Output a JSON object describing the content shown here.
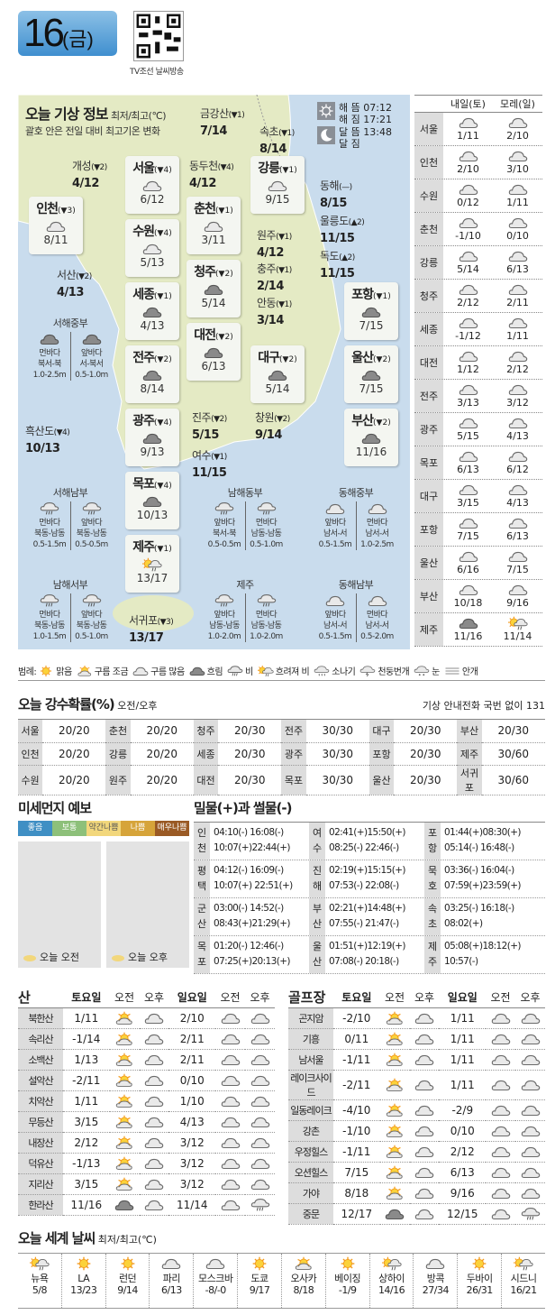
{
  "header": {
    "day": "16",
    "weekday": "(금)",
    "qr_caption": "TV조선 날씨방송"
  },
  "today": {
    "title": "오늘 기상 정보",
    "unit": "최저/최고(℃)",
    "note": "괄호 안은 전일 대비 최고기온 변화",
    "sun_rise_label": "해 뜸",
    "sun_rise": "07:12",
    "sun_set_label": "해 짐",
    "sun_set": "17:21",
    "moon_rise_label": "달 뜸",
    "moon_rise": "13:48",
    "moon_set_label": "달 짐",
    "moon_set": ""
  },
  "cities": [
    {
      "name": "금강산",
      "change": "(▼1)",
      "temp": "7/14"
    },
    {
      "name": "속초",
      "change": "(▼1)",
      "temp": "8/14"
    },
    {
      "name": "개성",
      "change": "(▼2)",
      "temp": "4/12"
    },
    {
      "name": "서울",
      "change": "(▼4)",
      "temp": "6/12",
      "icon": "cloud"
    },
    {
      "name": "동두천",
      "change": "(▼4)",
      "temp": "4/12"
    },
    {
      "name": "강릉",
      "change": "(▼1)",
      "temp": "9/15",
      "icon": "cloud"
    },
    {
      "name": "동해",
      "change": "(—)",
      "temp": "8/15"
    },
    {
      "name": "인천",
      "change": "(▼3)",
      "temp": "8/11",
      "icon": "cloud"
    },
    {
      "name": "춘천",
      "change": "(▼1)",
      "temp": "3/11",
      "icon": "cloud"
    },
    {
      "name": "울릉도",
      "change": "(▲2)",
      "temp": "11/15"
    },
    {
      "name": "수원",
      "change": "(▼4)",
      "temp": "5/13",
      "icon": "cloud"
    },
    {
      "name": "원주",
      "change": "(▼1)",
      "temp": "4/12"
    },
    {
      "name": "독도",
      "change": "(▲2)",
      "temp": "11/15"
    },
    {
      "name": "서산",
      "change": "(▼2)",
      "temp": "4/13"
    },
    {
      "name": "청주",
      "change": "(▼2)",
      "temp": "5/14",
      "icon": "dark"
    },
    {
      "name": "충주",
      "change": "(▼1)",
      "temp": "2/14"
    },
    {
      "name": "세종",
      "change": "(▼1)",
      "temp": "4/13",
      "icon": "dark"
    },
    {
      "name": "포항",
      "change": "(▼1)",
      "temp": "7/15",
      "icon": "dark"
    },
    {
      "name": "안동",
      "change": "(▼1)",
      "temp": "3/14"
    },
    {
      "name": "대전",
      "change": "(▼2)",
      "temp": "6/13",
      "icon": "dark"
    },
    {
      "name": "전주",
      "change": "(▼2)",
      "temp": "8/14",
      "icon": "dark"
    },
    {
      "name": "대구",
      "change": "(▼2)",
      "temp": "5/14",
      "icon": "dark"
    },
    {
      "name": "울산",
      "change": "(▼2)",
      "temp": "7/15",
      "icon": "dark"
    },
    {
      "name": "광주",
      "change": "(▼4)",
      "temp": "9/13",
      "icon": "dark"
    },
    {
      "name": "진주",
      "change": "(▼2)",
      "temp": "5/15"
    },
    {
      "name": "창원",
      "change": "(▼2)",
      "temp": "9/14"
    },
    {
      "name": "흑산도",
      "change": "(▼4)",
      "temp": "10/13"
    },
    {
      "name": "부산",
      "change": "(▼2)",
      "temp": "11/16",
      "icon": "dark"
    },
    {
      "name": "여수",
      "change": "(▼1)",
      "temp": "11/15"
    },
    {
      "name": "목포",
      "change": "(▼4)",
      "temp": "10/13",
      "icon": "dark"
    },
    {
      "name": "제주",
      "change": "(▼1)",
      "temp": "13/17",
      "icon": "sunrain"
    },
    {
      "name": "서귀포",
      "change": "(▼3)",
      "temp": "13/17"
    }
  ],
  "seas": [
    {
      "name": "서해중부",
      "cols": [
        {
          "icon": "dark",
          "label": "먼바다",
          "dir": "북서-북",
          "height": "1.0-2.5m"
        },
        {
          "icon": "dark",
          "label": "앞바다",
          "dir": "서-북서",
          "height": "0.5-1.0m"
        }
      ]
    },
    {
      "name": "서해남부",
      "cols": [
        {
          "icon": "rain",
          "label": "먼바다",
          "dir": "북동-남동",
          "height": "0.5-1.5m"
        },
        {
          "icon": "rain",
          "label": "앞바다",
          "dir": "북동-남동",
          "height": "0.5-0.5m"
        }
      ]
    },
    {
      "name": "남해서부",
      "cols": [
        {
          "icon": "rain",
          "label": "먼바다",
          "dir": "북동-남동",
          "height": "1.0-1.5m"
        },
        {
          "icon": "rain",
          "label": "앞바다",
          "dir": "북동-남동",
          "height": "0.5-1.0m"
        }
      ]
    },
    {
      "name": "남해동부",
      "cols": [
        {
          "icon": "rain",
          "label": "앞바다",
          "dir": "북서-북",
          "height": "0.5-0.5m"
        },
        {
          "icon": "rain",
          "label": "먼바다",
          "dir": "남동-남동",
          "height": "0.5-1.0m"
        }
      ]
    },
    {
      "name": "제주",
      "cols": [
        {
          "icon": "rain",
          "label": "앞바다",
          "dir": "남동-남동",
          "height": "1.0-2.0m"
        },
        {
          "icon": "rain",
          "label": "먼바다",
          "dir": "남동-남동",
          "height": "1.0-2.0m"
        }
      ]
    },
    {
      "name": "동해중부",
      "cols": [
        {
          "icon": "cloud",
          "label": "앞바다",
          "dir": "남서-서",
          "height": "0.5-1.5m"
        },
        {
          "icon": "cloud",
          "label": "먼바다",
          "dir": "남서-서",
          "height": "1.0-2.5m"
        }
      ]
    },
    {
      "name": "동해남부",
      "cols": [
        {
          "icon": "cloud",
          "label": "앞바다",
          "dir": "남서-서",
          "height": "0.5-1.5m"
        },
        {
          "icon": "cloud",
          "label": "먼바다",
          "dir": "남서-서",
          "height": "0.5-2.0m"
        }
      ]
    }
  ],
  "forecast": {
    "headers": [
      "내일(토)",
      "모레(일)"
    ],
    "rows": [
      {
        "city": "서울",
        "d1": {
          "icon": "cloud",
          "temp": "1/11"
        },
        "d2": {
          "icon": "cloud",
          "temp": "2/10"
        }
      },
      {
        "city": "인천",
        "d1": {
          "icon": "cloud",
          "temp": "2/10"
        },
        "d2": {
          "icon": "cloud",
          "temp": "3/10"
        }
      },
      {
        "city": "수원",
        "d1": {
          "icon": "cloud",
          "temp": "0/12"
        },
        "d2": {
          "icon": "cloud",
          "temp": "1/11"
        }
      },
      {
        "city": "춘천",
        "d1": {
          "icon": "cloud",
          "temp": "-1/10"
        },
        "d2": {
          "icon": "cloud",
          "temp": "0/10"
        }
      },
      {
        "city": "강릉",
        "d1": {
          "icon": "cloud",
          "temp": "5/14"
        },
        "d2": {
          "icon": "cloud",
          "temp": "6/13"
        }
      },
      {
        "city": "청주",
        "d1": {
          "icon": "cloud",
          "temp": "2/12"
        },
        "d2": {
          "icon": "cloud",
          "temp": "2/11"
        }
      },
      {
        "city": "세종",
        "d1": {
          "icon": "cloud",
          "temp": "-1/12"
        },
        "d2": {
          "icon": "cloud",
          "temp": "1/11"
        }
      },
      {
        "city": "대전",
        "d1": {
          "icon": "cloud",
          "temp": "1/12"
        },
        "d2": {
          "icon": "cloud",
          "temp": "2/12"
        }
      },
      {
        "city": "전주",
        "d1": {
          "icon": "cloud",
          "temp": "3/13"
        },
        "d2": {
          "icon": "cloud",
          "temp": "3/12"
        }
      },
      {
        "city": "광주",
        "d1": {
          "icon": "cloud",
          "temp": "5/15"
        },
        "d2": {
          "icon": "cloud",
          "temp": "4/13"
        }
      },
      {
        "city": "목포",
        "d1": {
          "icon": "cloud",
          "temp": "6/13"
        },
        "d2": {
          "icon": "cloud",
          "temp": "6/12"
        }
      },
      {
        "city": "대구",
        "d1": {
          "icon": "cloud",
          "temp": "3/15"
        },
        "d2": {
          "icon": "cloud",
          "temp": "4/13"
        }
      },
      {
        "city": "포항",
        "d1": {
          "icon": "cloud",
          "temp": "7/15"
        },
        "d2": {
          "icon": "cloud",
          "temp": "6/13"
        }
      },
      {
        "city": "울산",
        "d1": {
          "icon": "cloud",
          "temp": "6/16"
        },
        "d2": {
          "icon": "cloud",
          "temp": "7/15"
        }
      },
      {
        "city": "부산",
        "d1": {
          "icon": "cloud",
          "temp": "10/18"
        },
        "d2": {
          "icon": "cloud",
          "temp": "9/16"
        }
      },
      {
        "city": "제주",
        "d1": {
          "icon": "dark",
          "temp": "11/16"
        },
        "d2": {
          "icon": "sunrain",
          "temp": "11/14"
        }
      }
    ]
  },
  "legend": {
    "label": "범례:",
    "items": [
      {
        "icon": "sun",
        "label": "맑음"
      },
      {
        "icon": "suncloud",
        "label": "구름 조금"
      },
      {
        "icon": "cloud",
        "label": "구름 많음"
      },
      {
        "icon": "dark",
        "label": "흐림"
      },
      {
        "icon": "rain",
        "label": "비"
      },
      {
        "icon": "sunrain",
        "label": "흐려져 비"
      },
      {
        "icon": "shower",
        "label": "소나기"
      },
      {
        "icon": "thunder",
        "label": "천둥번개"
      },
      {
        "icon": "snow",
        "label": "눈"
      },
      {
        "icon": "fog",
        "label": "안개"
      }
    ]
  },
  "precip": {
    "title": "오늘 강수확률(%)",
    "subtitle": "오전/오후",
    "phone": "기상 안내전화 국번 없이 131",
    "rows": [
      [
        {
          "city": "서울",
          "value": "20/20"
        },
        {
          "city": "춘천",
          "value": "20/20"
        },
        {
          "city": "청주",
          "value": "20/30"
        },
        {
          "city": "전주",
          "value": "30/30"
        },
        {
          "city": "대구",
          "value": "20/30"
        },
        {
          "city": "부산",
          "value": "20/30"
        }
      ],
      [
        {
          "city": "인천",
          "value": "20/20"
        },
        {
          "city": "강릉",
          "value": "20/20"
        },
        {
          "city": "세종",
          "value": "20/30"
        },
        {
          "city": "광주",
          "value": "30/30"
        },
        {
          "city": "포항",
          "value": "20/30"
        },
        {
          "city": "제주",
          "value": "30/60"
        }
      ],
      [
        {
          "city": "수원",
          "value": "20/20"
        },
        {
          "city": "원주",
          "value": "20/20"
        },
        {
          "city": "대전",
          "value": "20/30"
        },
        {
          "city": "목포",
          "value": "30/30"
        },
        {
          "city": "울산",
          "value": "20/30"
        },
        {
          "city": "서귀포",
          "value": "30/60"
        }
      ]
    ]
  },
  "dust": {
    "title": "미세먼지 예보",
    "levels": [
      {
        "label": "좋음",
        "color": "#3f8fc4"
      },
      {
        "label": "보통",
        "color": "#8dc07a"
      },
      {
        "label": "약간나쁨",
        "color": "#f2d77c"
      },
      {
        "label": "나쁨",
        "color": "#d6a43a"
      },
      {
        "label": "매우나쁨",
        "color": "#9a5a25"
      }
    ],
    "maps": [
      {
        "label": "오늘 오전"
      },
      {
        "label": "오늘 오후"
      }
    ]
  },
  "tide": {
    "title": "밀물(+)과 썰물(-)",
    "rows": [
      [
        {
          "place": [
            "인",
            "천"
          ],
          "lines": [
            "04:10(-) 16:08(-)",
            "10:07(+)22:44(+)"
          ]
        },
        {
          "place": [
            "여",
            "수"
          ],
          "lines": [
            "02:41(+)15:50(+)",
            "08:25(-) 22:46(-)"
          ]
        },
        {
          "place": [
            "포",
            "항"
          ],
          "lines": [
            "01:44(+)08:30(+)",
            "05:14(-) 16:48(-)"
          ]
        }
      ],
      [
        {
          "place": [
            "평",
            "택"
          ],
          "lines": [
            "04:12(-) 16:09(-)",
            "10:07(+) 22:51(+)"
          ]
        },
        {
          "place": [
            "진",
            "해"
          ],
          "lines": [
            "02:19(+)15:15(+)",
            "07:53(-) 22:08(-)"
          ]
        },
        {
          "place": [
            "묵",
            "호"
          ],
          "lines": [
            "03:36(-) 16:04(-)",
            "07:59(+)23:59(+)"
          ]
        }
      ],
      [
        {
          "place": [
            "군",
            "산"
          ],
          "lines": [
            "03:00(-) 14:52(-)",
            "08:43(+)21:29(+)"
          ]
        },
        {
          "place": [
            "부",
            "산"
          ],
          "lines": [
            "02:21(+)14:48(+)",
            "07:55(-) 21:47(-)"
          ]
        },
        {
          "place": [
            "속",
            "초"
          ],
          "lines": [
            "03:25(-) 16:18(-)",
            "08:02(+)"
          ]
        }
      ],
      [
        {
          "place": [
            "목",
            "포"
          ],
          "lines": [
            "01:20(-) 12:46(-)",
            "07:25(+)20:13(+)"
          ]
        },
        {
          "place": [
            "울",
            "산"
          ],
          "lines": [
            "01:51(+)12:19(+)",
            "07:08(-) 20:18(-)"
          ]
        },
        {
          "place": [
            "제",
            "주"
          ],
          "lines": [
            "05:08(+)18:12(+)",
            "10:57(-)"
          ]
        }
      ]
    ]
  },
  "mountains": {
    "title": "산",
    "headers": [
      "토요일",
      "오전",
      "오후",
      "일요일",
      "오전",
      "오후"
    ],
    "rows": [
      {
        "name": "북한산",
        "sat": "1/11",
        "sat_am": "suncloud",
        "sat_pm": "cloud",
        "sun": "2/10",
        "sun_am": "cloud",
        "sun_pm": "cloud"
      },
      {
        "name": "속리산",
        "sat": "-1/14",
        "sat_am": "suncloud",
        "sat_pm": "cloud",
        "sun": "2/11",
        "sun_am": "cloud",
        "sun_pm": "cloud"
      },
      {
        "name": "소백산",
        "sat": "1/13",
        "sat_am": "suncloud",
        "sat_pm": "cloud",
        "sun": "2/11",
        "sun_am": "cloud",
        "sun_pm": "cloud"
      },
      {
        "name": "설악산",
        "sat": "-2/11",
        "sat_am": "suncloud",
        "sat_pm": "cloud",
        "sun": "0/10",
        "sun_am": "cloud",
        "sun_pm": "cloud"
      },
      {
        "name": "치악산",
        "sat": "1/11",
        "sat_am": "suncloud",
        "sat_pm": "cloud",
        "sun": "1/10",
        "sun_am": "cloud",
        "sun_pm": "cloud"
      },
      {
        "name": "무등산",
        "sat": "3/15",
        "sat_am": "suncloud",
        "sat_pm": "cloud",
        "sun": "4/13",
        "sun_am": "cloud",
        "sun_pm": "cloud"
      },
      {
        "name": "내장산",
        "sat": "2/12",
        "sat_am": "suncloud",
        "sat_pm": "cloud",
        "sun": "3/12",
        "sun_am": "cloud",
        "sun_pm": "cloud"
      },
      {
        "name": "덕유산",
        "sat": "-1/13",
        "sat_am": "suncloud",
        "sat_pm": "cloud",
        "sun": "3/12",
        "sun_am": "cloud",
        "sun_pm": "cloud"
      },
      {
        "name": "지리산",
        "sat": "3/15",
        "sat_am": "suncloud",
        "sat_pm": "cloud",
        "sun": "3/12",
        "sun_am": "cloud",
        "sun_pm": "cloud"
      },
      {
        "name": "한라산",
        "sat": "11/16",
        "sat_am": "dark",
        "sat_pm": "cloud",
        "sun": "11/14",
        "sun_am": "cloud",
        "sun_pm": "rain"
      }
    ]
  },
  "golf": {
    "title": "골프장",
    "headers": [
      "토요일",
      "오전",
      "오후",
      "일요일",
      "오전",
      "오후"
    ],
    "rows": [
      {
        "name": "곤지암",
        "sat": "-2/10",
        "sat_am": "suncloud",
        "sat_pm": "cloud",
        "sun": "1/11",
        "sun_am": "cloud",
        "sun_pm": "cloud"
      },
      {
        "name": "기흥",
        "sat": "0/11",
        "sat_am": "suncloud",
        "sat_pm": "cloud",
        "sun": "1/11",
        "sun_am": "cloud",
        "sun_pm": "cloud"
      },
      {
        "name": "남서울",
        "sat": "-1/11",
        "sat_am": "suncloud",
        "sat_pm": "cloud",
        "sun": "1/11",
        "sun_am": "cloud",
        "sun_pm": "cloud"
      },
      {
        "name": "레이크사이드",
        "sat": "-2/11",
        "sat_am": "suncloud",
        "sat_pm": "cloud",
        "sun": "1/11",
        "sun_am": "cloud",
        "sun_pm": "cloud"
      },
      {
        "name": "일동레이크",
        "sat": "-4/10",
        "sat_am": "suncloud",
        "sat_pm": "cloud",
        "sun": "-2/9",
        "sun_am": "cloud",
        "sun_pm": "cloud"
      },
      {
        "name": "강촌",
        "sat": "-1/10",
        "sat_am": "suncloud",
        "sat_pm": "cloud",
        "sun": "0/10",
        "sun_am": "cloud",
        "sun_pm": "cloud"
      },
      {
        "name": "우정힐스",
        "sat": "-1/11",
        "sat_am": "suncloud",
        "sat_pm": "cloud",
        "sun": "2/12",
        "sun_am": "cloud",
        "sun_pm": "cloud"
      },
      {
        "name": "오션힐스",
        "sat": "7/15",
        "sat_am": "suncloud",
        "sat_pm": "cloud",
        "sun": "6/13",
        "sun_am": "cloud",
        "sun_pm": "cloud"
      },
      {
        "name": "가야",
        "sat": "8/18",
        "sat_am": "suncloud",
        "sat_pm": "cloud",
        "sun": "9/16",
        "sun_am": "cloud",
        "sun_pm": "cloud"
      },
      {
        "name": "중문",
        "sat": "12/17",
        "sat_am": "dark",
        "sat_pm": "cloud",
        "sun": "12/15",
        "sun_am": "cloud",
        "sun_pm": "rain"
      }
    ]
  },
  "world": {
    "title": "오늘 세계 날씨",
    "unit": "최저/최고(℃)",
    "cities": [
      {
        "icon": "sunrain",
        "name": "뉴욕",
        "temp": "5/8"
      },
      {
        "icon": "sun",
        "name": "LA",
        "temp": "13/23"
      },
      {
        "icon": "sun",
        "name": "런던",
        "temp": "9/14"
      },
      {
        "icon": "cloud",
        "name": "파리",
        "temp": "6/13"
      },
      {
        "icon": "cloud",
        "name": "모스크바",
        "temp": "-8/-0"
      },
      {
        "icon": "sun",
        "name": "도쿄",
        "temp": "9/17"
      },
      {
        "icon": "suncloud",
        "name": "오사카",
        "temp": "8/18"
      },
      {
        "icon": "sun",
        "name": "베이징",
        "temp": "-1/9"
      },
      {
        "icon": "sunrain",
        "name": "상하이",
        "temp": "14/16"
      },
      {
        "icon": "cloud",
        "name": "방콕",
        "temp": "27/34"
      },
      {
        "icon": "sun",
        "name": "두바이",
        "temp": "26/31"
      },
      {
        "icon": "sunrain",
        "name": "시드니",
        "temp": "16/21"
      }
    ]
  }
}
